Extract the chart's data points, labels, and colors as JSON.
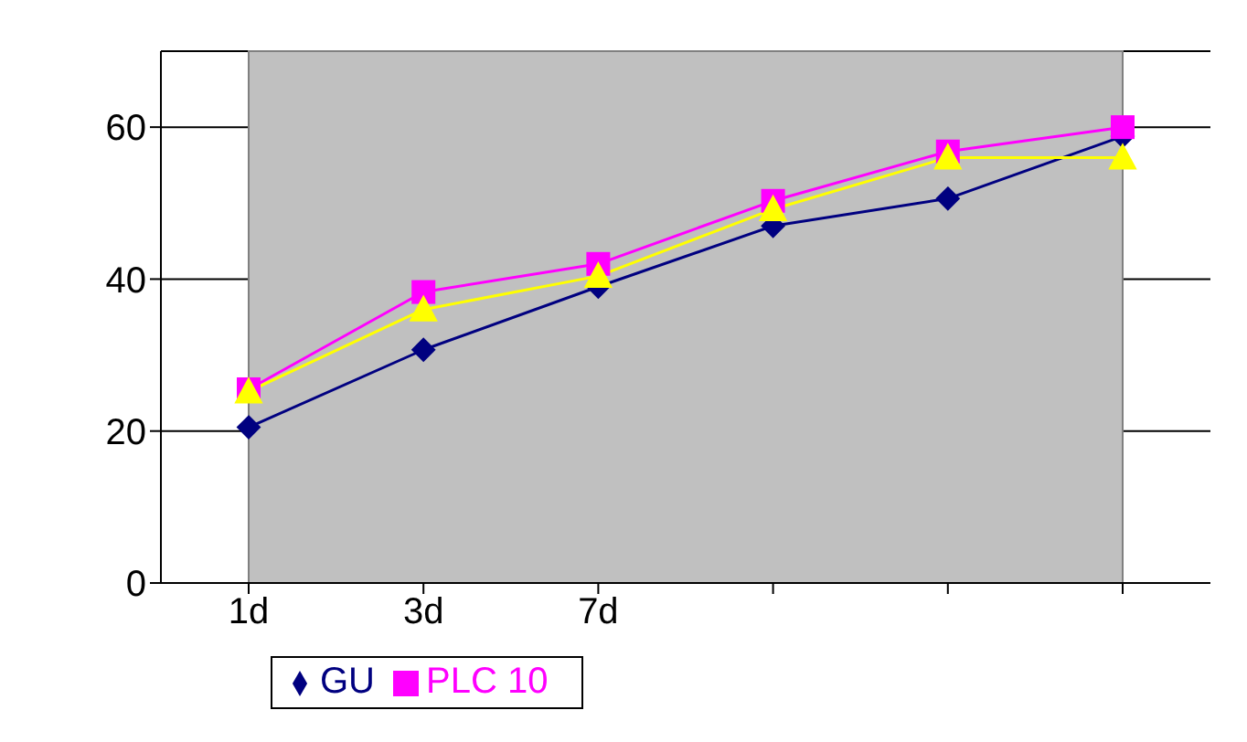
{
  "chart_data": {
    "type": "line",
    "categories": [
      "1d",
      "3d",
      "7d",
      null,
      null,
      null
    ],
    "series": [
      {
        "name": "GU",
        "color": "#000080",
        "marker": "diamond",
        "values": [
          20.5,
          30.7,
          39,
          47,
          50.6,
          58.8
        ]
      },
      {
        "name": "PLC 10",
        "color": "#ff00ff",
        "marker": "square",
        "values": [
          25.5,
          38.3,
          42,
          50.3,
          56.8,
          60
        ]
      },
      {
        "color": "#ffff00",
        "marker": "triangle",
        "values": [
          25.2,
          36,
          40.4,
          49.2,
          56,
          56
        ]
      }
    ],
    "ylim": [
      0,
      70
    ],
    "yticks": [
      0,
      20,
      40,
      60
    ],
    "grid": "y",
    "legend": "bottom"
  }
}
